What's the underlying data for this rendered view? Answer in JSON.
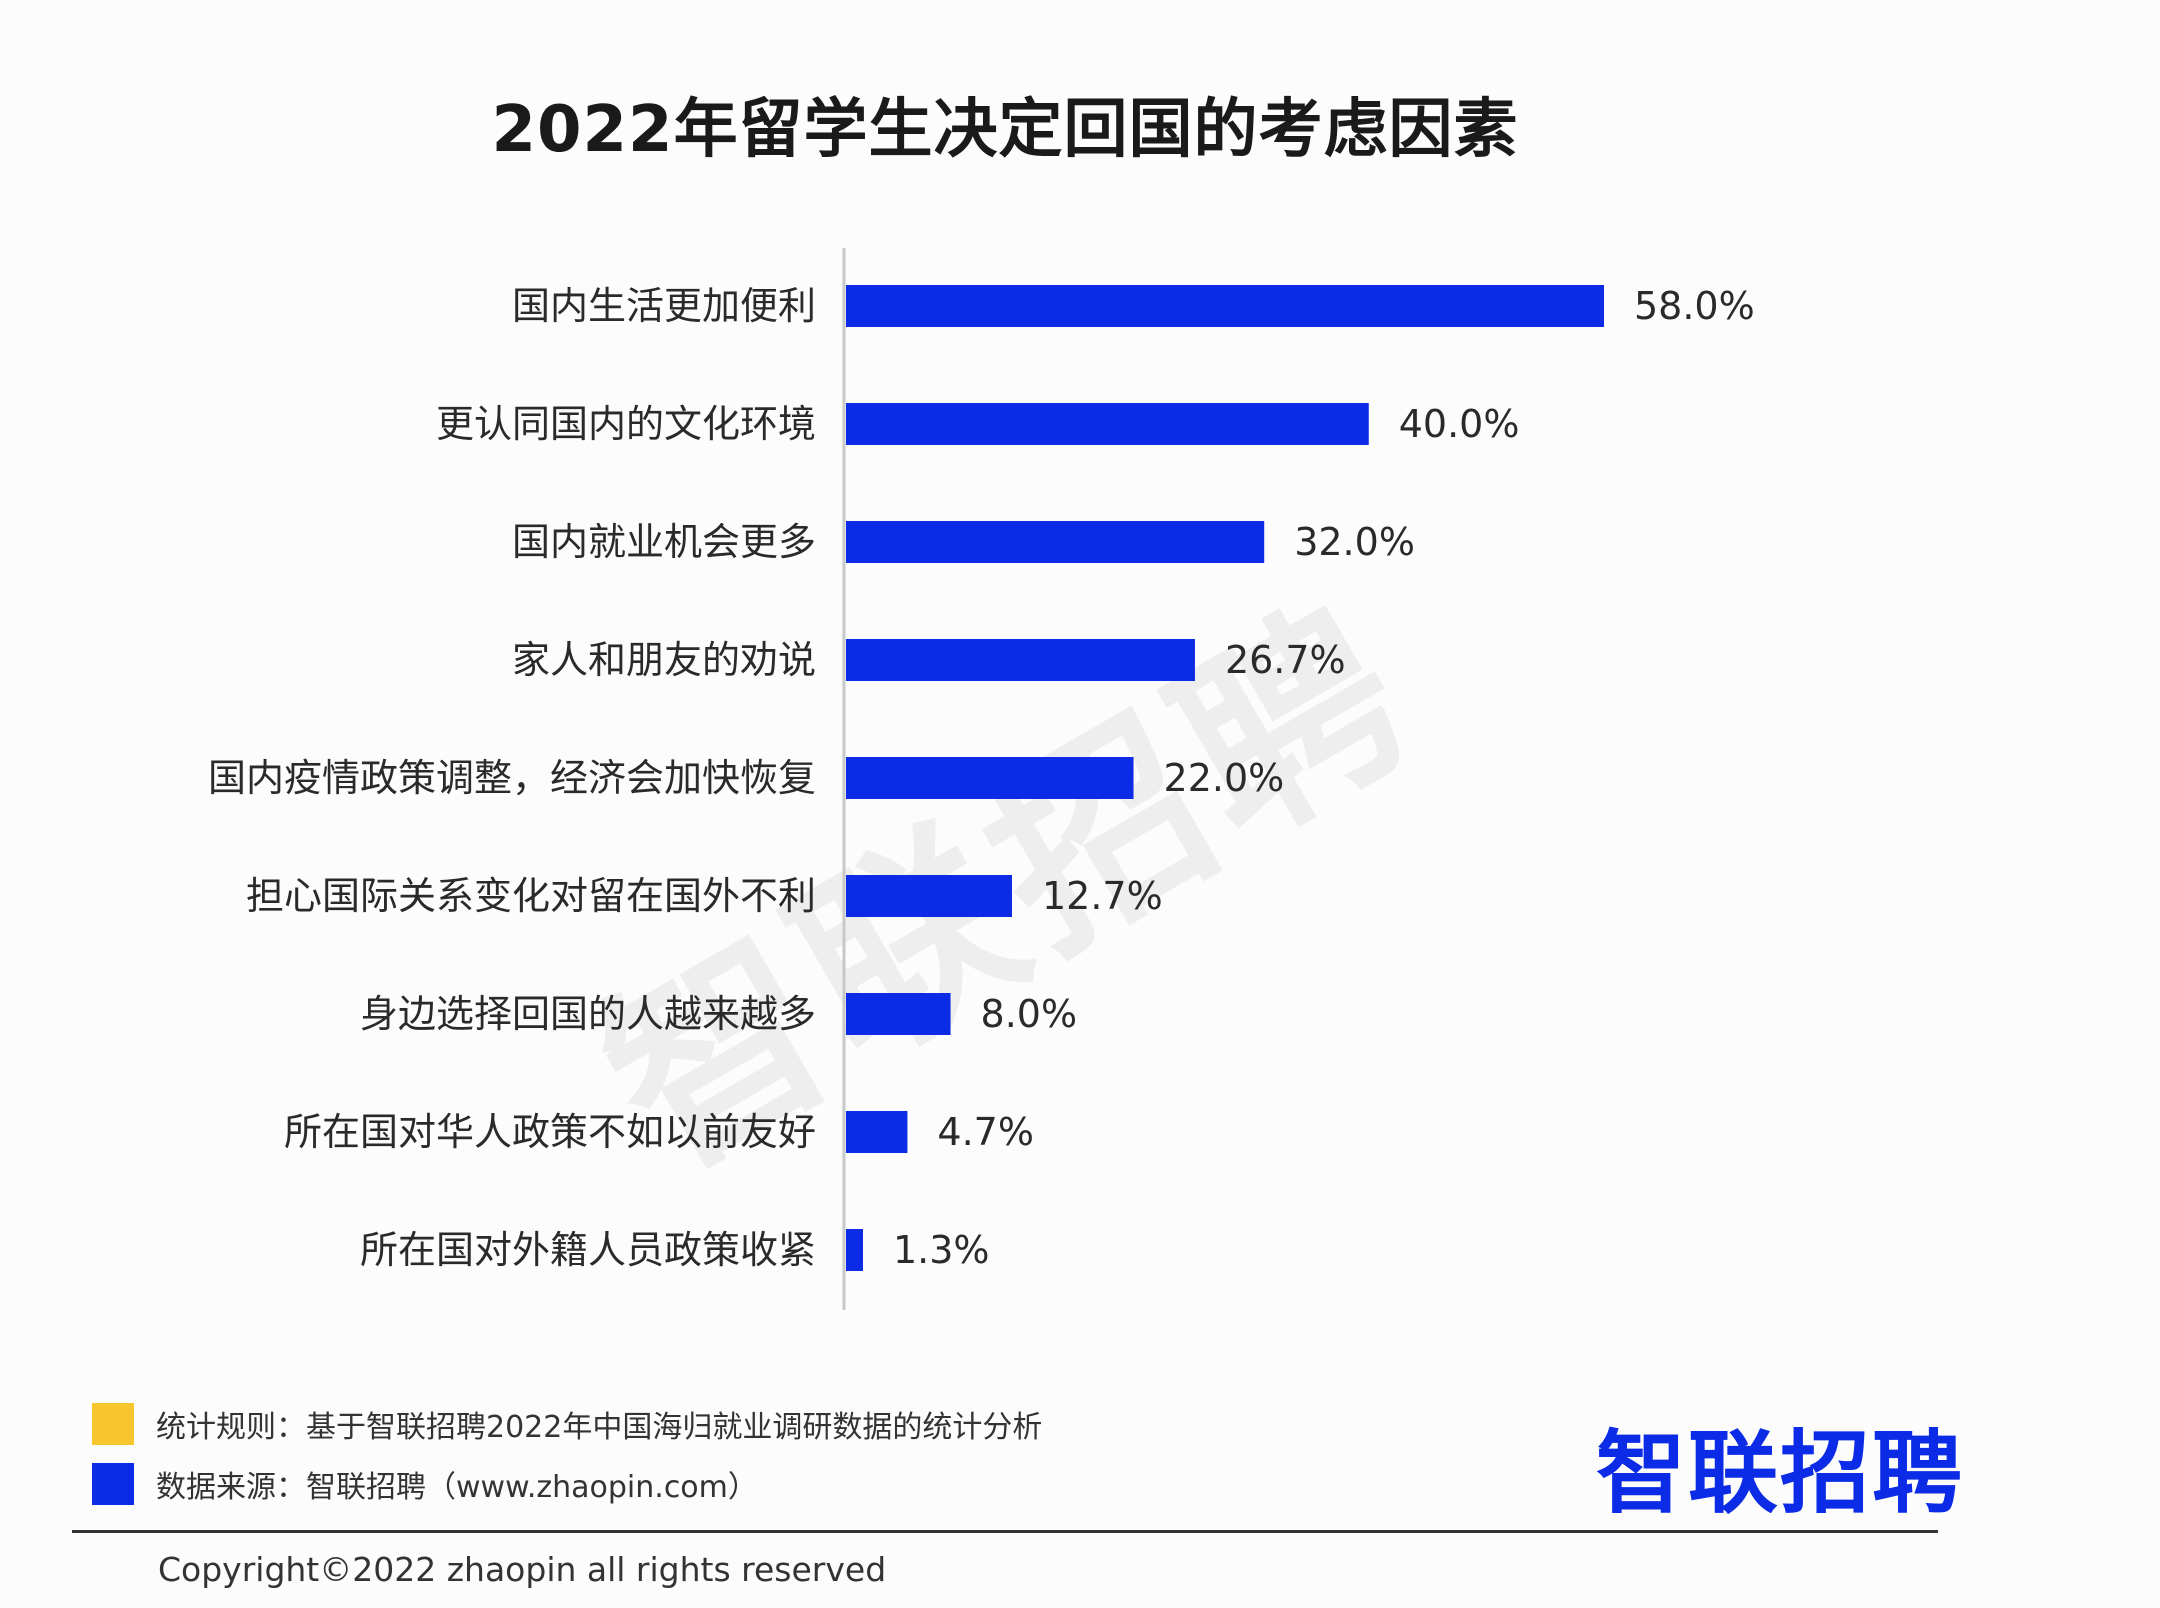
{
  "watermark": "智联招聘",
  "chart_data": {
    "type": "bar",
    "orientation": "horizontal",
    "title": "2022年留学生决定回国的考虑因素",
    "categories": [
      "国内生活更加便利",
      "更认同国内的文化环境",
      "国内就业机会更多",
      "家人和朋友的劝说",
      "国内疫情政策调整，经济会加快恢复",
      "担心国际关系变化对留在国外不利",
      "身边选择回国的人越来越多",
      "所在国对华人政策不如以前友好",
      "所在国对外籍人员政策收紧"
    ],
    "values": [
      58.0,
      40.0,
      32.0,
      26.7,
      22.0,
      12.7,
      8.0,
      4.7,
      1.3
    ],
    "value_labels": [
      "58.0%",
      "40.0%",
      "32.0%",
      "26.7%",
      "22.0%",
      "12.7%",
      "8.0%",
      "4.7%",
      "1.3%"
    ],
    "bar_color": "#0b2be6",
    "xlim": [
      0,
      58
    ],
    "grid": false,
    "legend": "none"
  },
  "notes": [
    {
      "text": "统计规则：基于智联招聘2022年中国海归就业调研数据的统计分析",
      "color": "#f7c52e"
    },
    {
      "text": "数据来源：智联招聘（www.zhaopin.com）",
      "color": "#0b2be6"
    }
  ],
  "logo": {
    "text": "智联招聘",
    "color": "#0b2be6"
  },
  "copyright": "Copyright©2022 zhaopin all rights reserved"
}
